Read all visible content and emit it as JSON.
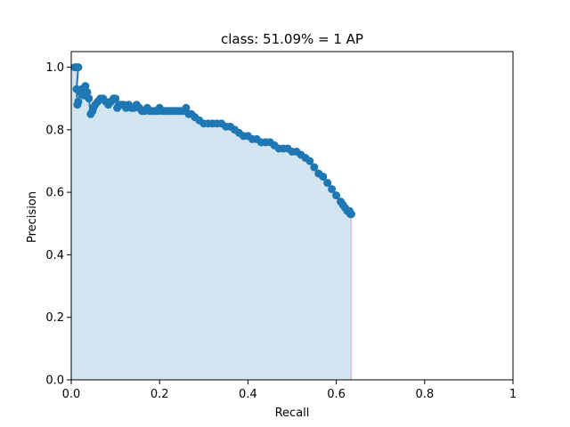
{
  "chart_data": {
    "type": "line",
    "title": "class: 51.09% = 1 AP",
    "xlabel": "Recall",
    "ylabel": "Precision",
    "xlim": [
      0,
      1
    ],
    "ylim": [
      0,
      1.05
    ],
    "xticks": [
      0,
      0.2,
      0.4,
      0.6,
      0.8,
      1
    ],
    "xtick_labels": [
      "0.0",
      "0.2",
      "0.4",
      "0.6",
      "0.8",
      "1"
    ],
    "yticks": [
      0,
      0.2,
      0.4,
      0.6,
      0.8,
      1.0
    ],
    "ytick_labels": [
      "0.0",
      "0.2",
      "0.4",
      "0.6",
      "0.8",
      "1.0"
    ],
    "grid": false,
    "legend": "none",
    "colors": {
      "line": "#1f77b4",
      "fill": "#1f77b4",
      "fill_opacity": 0.2,
      "edge": "#d62728"
    },
    "series": [
      {
        "x": [
          0.008,
          0.012,
          0.016,
          0.012,
          0.014,
          0.016,
          0.02,
          0.024,
          0.028,
          0.032,
          0.036,
          0.04,
          0.044,
          0.048,
          0.05,
          0.054,
          0.06,
          0.066,
          0.072,
          0.078,
          0.084,
          0.09,
          0.096,
          0.1,
          0.104,
          0.108,
          0.112,
          0.118,
          0.124,
          0.13,
          0.136,
          0.142,
          0.148,
          0.154,
          0.16,
          0.166,
          0.172,
          0.178,
          0.184,
          0.19,
          0.196,
          0.2,
          0.206,
          0.212,
          0.218,
          0.224,
          0.23,
          0.236,
          0.242,
          0.248,
          0.254,
          0.26,
          0.266,
          0.272,
          0.28,
          0.29,
          0.3,
          0.31,
          0.32,
          0.33,
          0.34,
          0.35,
          0.36,
          0.37,
          0.38,
          0.39,
          0.4,
          0.41,
          0.42,
          0.43,
          0.44,
          0.45,
          0.46,
          0.47,
          0.48,
          0.49,
          0.5,
          0.51,
          0.52,
          0.53,
          0.54,
          0.55,
          0.56,
          0.57,
          0.58,
          0.59,
          0.6,
          0.61,
          0.615,
          0.62,
          0.625,
          0.63,
          0.632,
          0.634
        ],
        "y": [
          1.0,
          1.0,
          1.0,
          0.93,
          0.88,
          0.89,
          0.92,
          0.93,
          0.91,
          0.94,
          0.92,
          0.9,
          0.85,
          0.86,
          0.87,
          0.88,
          0.89,
          0.9,
          0.9,
          0.89,
          0.88,
          0.89,
          0.9,
          0.9,
          0.87,
          0.88,
          0.88,
          0.88,
          0.87,
          0.88,
          0.87,
          0.87,
          0.88,
          0.87,
          0.86,
          0.86,
          0.87,
          0.86,
          0.86,
          0.86,
          0.86,
          0.87,
          0.86,
          0.86,
          0.86,
          0.86,
          0.86,
          0.86,
          0.86,
          0.86,
          0.86,
          0.87,
          0.85,
          0.85,
          0.84,
          0.83,
          0.82,
          0.82,
          0.82,
          0.82,
          0.82,
          0.81,
          0.81,
          0.8,
          0.79,
          0.78,
          0.78,
          0.77,
          0.77,
          0.76,
          0.76,
          0.76,
          0.75,
          0.74,
          0.74,
          0.74,
          0.73,
          0.73,
          0.72,
          0.71,
          0.7,
          0.68,
          0.66,
          0.65,
          0.63,
          0.61,
          0.59,
          0.57,
          0.56,
          0.55,
          0.54,
          0.54,
          0.53,
          0.53
        ]
      }
    ]
  }
}
